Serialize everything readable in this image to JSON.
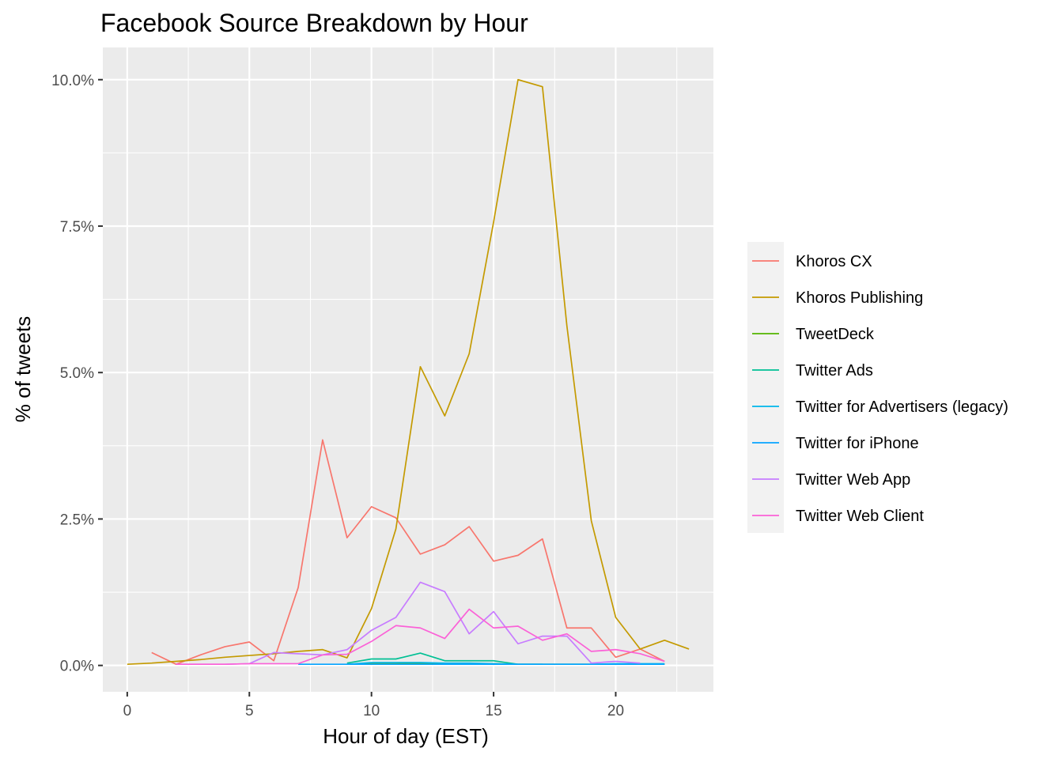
{
  "chart_data": {
    "type": "line",
    "title": "Facebook Source Breakdown by Hour",
    "xlabel": "Hour of day (EST)",
    "ylabel": "% of tweets",
    "xlim": [
      -1,
      24
    ],
    "ylim": [
      -0.45,
      10.55
    ],
    "x_ticks": [
      0,
      5,
      10,
      15,
      20
    ],
    "y_ticks": [
      {
        "value": 0.0,
        "label": "0.0%"
      },
      {
        "value": 2.5,
        "label": "2.5%"
      },
      {
        "value": 5.0,
        "label": "5.0%"
      },
      {
        "value": 7.5,
        "label": "7.5%"
      },
      {
        "value": 10.0,
        "label": "10.0%"
      }
    ],
    "grid": true,
    "legend_position": "right",
    "series": [
      {
        "name": "Khoros CX",
        "color": "#F8766D",
        "x": [
          1,
          2,
          3,
          4,
          5,
          6,
          7,
          8,
          9,
          10,
          11,
          12,
          13,
          14,
          15,
          16,
          17,
          18,
          19,
          20,
          21,
          22
        ],
        "y": [
          0.22,
          0.02,
          0.18,
          0.32,
          0.4,
          0.08,
          1.33,
          3.85,
          2.18,
          2.71,
          2.52,
          1.9,
          2.06,
          2.37,
          1.78,
          1.88,
          2.16,
          0.64,
          0.64,
          0.14,
          0.28,
          0.07
        ]
      },
      {
        "name": "Khoros Publishing",
        "color": "#C49A00",
        "x": [
          0,
          1,
          2,
          3,
          4,
          5,
          6,
          7,
          8,
          9,
          10,
          11,
          12,
          13,
          14,
          15,
          16,
          17,
          18,
          19,
          20,
          21,
          22,
          23
        ],
        "y": [
          0.02,
          0.04,
          0.07,
          0.1,
          0.14,
          0.17,
          0.2,
          0.24,
          0.27,
          0.13,
          0.97,
          2.33,
          5.1,
          4.26,
          5.32,
          7.57,
          10.0,
          9.88,
          5.8,
          2.47,
          0.82,
          0.28,
          0.43,
          0.28
        ]
      },
      {
        "name": "TweetDeck",
        "color": "#53B400",
        "x": [
          9,
          10,
          11,
          12,
          13,
          14,
          15,
          16,
          17,
          18,
          19,
          20,
          21,
          22
        ],
        "y": [
          0.02,
          0.03,
          0.03,
          0.04,
          0.03,
          0.03,
          0.03,
          0.02,
          0.02,
          0.02,
          0.02,
          0.02,
          0.02,
          0.02
        ]
      },
      {
        "name": "Twitter Ads",
        "color": "#00C094",
        "x": [
          9,
          10,
          11,
          12,
          13,
          14,
          15,
          16,
          17
        ],
        "y": [
          0.04,
          0.11,
          0.11,
          0.21,
          0.08,
          0.08,
          0.08,
          0.02,
          0.02
        ]
      },
      {
        "name": "Twitter for Advertisers (legacy)",
        "color": "#00B6EB",
        "x": [
          9,
          10,
          11,
          12,
          13,
          14,
          15,
          16,
          17,
          18,
          19,
          20,
          21,
          22
        ],
        "y": [
          0.02,
          0.05,
          0.05,
          0.05,
          0.04,
          0.04,
          0.03,
          0.02,
          0.02,
          0.02,
          0.02,
          0.03,
          0.03,
          0.03
        ]
      },
      {
        "name": "Twitter for iPhone",
        "color": "#06A4FF",
        "x": [
          7,
          8,
          9,
          10,
          11,
          12,
          13,
          14,
          15,
          16,
          17,
          18,
          19,
          20,
          21,
          22
        ],
        "y": [
          0.02,
          0.02,
          0.02,
          0.02,
          0.02,
          0.02,
          0.02,
          0.02,
          0.02,
          0.02,
          0.02,
          0.02,
          0.02,
          0.02,
          0.02,
          0.02
        ]
      },
      {
        "name": "Twitter Web App",
        "color": "#C77CFF",
        "x": [
          2,
          3,
          4,
          5,
          6,
          7,
          8,
          9,
          10,
          11,
          12,
          13,
          14,
          15,
          16,
          17,
          18,
          19,
          20,
          21
        ],
        "y": [
          0.02,
          0.02,
          0.02,
          0.03,
          0.22,
          0.2,
          0.18,
          0.27,
          0.6,
          0.82,
          1.42,
          1.26,
          0.54,
          0.92,
          0.37,
          0.5,
          0.5,
          0.04,
          0.07,
          0.04
        ]
      },
      {
        "name": "Twitter Web Client",
        "color": "#FB61D7",
        "x": [
          2,
          3,
          4,
          5,
          6,
          7,
          8,
          9,
          10,
          11,
          12,
          13,
          14,
          15,
          16,
          17,
          18,
          19,
          20,
          21,
          22
        ],
        "y": [
          0.02,
          0.02,
          0.02,
          0.03,
          0.03,
          0.03,
          0.18,
          0.19,
          0.41,
          0.68,
          0.64,
          0.46,
          0.96,
          0.64,
          0.67,
          0.43,
          0.54,
          0.24,
          0.27,
          0.2,
          0.07
        ]
      }
    ]
  }
}
